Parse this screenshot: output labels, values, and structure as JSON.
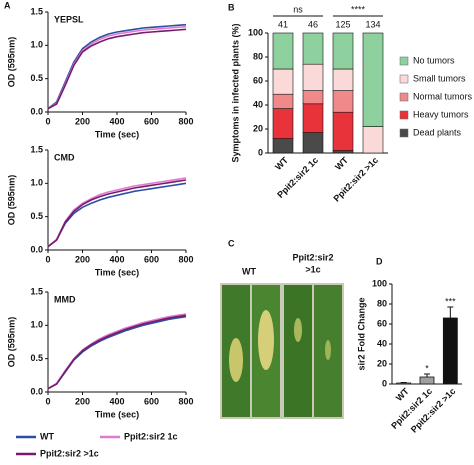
{
  "panels": [
    "A",
    "B",
    "C",
    "D"
  ],
  "chart_data": [
    {
      "type": "line",
      "title": "YEPSL",
      "xlabel": "Time (sec)",
      "ylabel": "OD (595nm)",
      "x": [
        0,
        50,
        100,
        150,
        200,
        250,
        300,
        350,
        400,
        450,
        500,
        550,
        600,
        650,
        700,
        750,
        800
      ],
      "xlim": [
        0,
        800
      ],
      "xticks": [
        0,
        200,
        400,
        600,
        800
      ],
      "ylim": [
        0,
        1.5
      ],
      "yticks": [
        {
          "value": 0,
          "label": "0.0"
        },
        0.5,
        {
          "value": 1,
          "label": "1.0"
        },
        1.5
      ],
      "series": [
        {
          "name": "WT",
          "color": "#2b4fa3",
          "values": [
            0.05,
            0.15,
            0.45,
            0.75,
            0.95,
            1.05,
            1.12,
            1.17,
            1.2,
            1.22,
            1.24,
            1.26,
            1.27,
            1.28,
            1.29,
            1.3,
            1.31
          ]
        },
        {
          "name": "Ppit2:sir2 1c",
          "color": "#e07ad0",
          "values": [
            0.05,
            0.13,
            0.42,
            0.72,
            0.92,
            1.02,
            1.09,
            1.14,
            1.17,
            1.19,
            1.21,
            1.23,
            1.24,
            1.25,
            1.26,
            1.27,
            1.28
          ]
        },
        {
          "name": "Ppit2:sir2 >1c",
          "color": "#7a1a6e",
          "values": [
            0.05,
            0.12,
            0.4,
            0.7,
            0.9,
            0.99,
            1.05,
            1.1,
            1.13,
            1.15,
            1.17,
            1.19,
            1.2,
            1.21,
            1.22,
            1.23,
            1.24
          ]
        }
      ]
    },
    {
      "type": "line",
      "title": "CMD",
      "xlabel": "Time (sec)",
      "ylabel": "OD (595nm)",
      "x": [
        0,
        50,
        100,
        150,
        200,
        250,
        300,
        350,
        400,
        450,
        500,
        550,
        600,
        650,
        700,
        750,
        800
      ],
      "xlim": [
        0,
        800
      ],
      "xticks": [
        0,
        200,
        400,
        600,
        800
      ],
      "ylim": [
        0,
        1.5
      ],
      "yticks": [
        {
          "value": 0,
          "label": "0.0"
        },
        0.5,
        {
          "value": 1,
          "label": "1.0"
        },
        1.5
      ],
      "series": [
        {
          "name": "WT",
          "color": "#2b4fa3",
          "values": [
            0.05,
            0.15,
            0.4,
            0.55,
            0.64,
            0.7,
            0.75,
            0.79,
            0.82,
            0.85,
            0.88,
            0.9,
            0.92,
            0.94,
            0.96,
            0.98,
            1.0
          ]
        },
        {
          "name": "Ppit2:sir2 1c",
          "color": "#e07ad0",
          "values": [
            0.05,
            0.16,
            0.43,
            0.6,
            0.7,
            0.77,
            0.83,
            0.87,
            0.9,
            0.93,
            0.96,
            0.98,
            1.0,
            1.02,
            1.04,
            1.06,
            1.08
          ]
        },
        {
          "name": "Ppit2:sir2 >1c",
          "color": "#7a1a6e",
          "values": [
            0.05,
            0.15,
            0.42,
            0.58,
            0.68,
            0.75,
            0.8,
            0.84,
            0.87,
            0.9,
            0.93,
            0.95,
            0.97,
            0.99,
            1.01,
            1.03,
            1.05
          ]
        }
      ]
    },
    {
      "type": "line",
      "title": "MMD",
      "xlabel": "Time (sec)",
      "ylabel": "OD (595nm)",
      "x": [
        0,
        50,
        100,
        150,
        200,
        250,
        300,
        350,
        400,
        450,
        500,
        550,
        600,
        650,
        700,
        750,
        800
      ],
      "xlim": [
        0,
        800
      ],
      "xticks": [
        0,
        200,
        400,
        600,
        800
      ],
      "ylim": [
        0,
        1.5
      ],
      "yticks": [
        {
          "value": 0,
          "label": "0.0"
        },
        0.5,
        {
          "value": 1,
          "label": "1.0"
        },
        1.5
      ],
      "series": [
        {
          "name": "WT",
          "color": "#2b4fa3",
          "values": [
            0.05,
            0.12,
            0.3,
            0.48,
            0.6,
            0.69,
            0.76,
            0.82,
            0.87,
            0.92,
            0.96,
            1.0,
            1.03,
            1.06,
            1.09,
            1.11,
            1.13
          ]
        },
        {
          "name": "Ppit2:sir2 1c",
          "color": "#e07ad0",
          "values": [
            0.05,
            0.13,
            0.32,
            0.5,
            0.63,
            0.72,
            0.8,
            0.86,
            0.91,
            0.96,
            1.0,
            1.04,
            1.07,
            1.1,
            1.13,
            1.15,
            1.17
          ]
        },
        {
          "name": "Ppit2:sir2 >1c",
          "color": "#7a1a6e",
          "values": [
            0.05,
            0.12,
            0.31,
            0.49,
            0.62,
            0.71,
            0.78,
            0.84,
            0.89,
            0.94,
            0.98,
            1.02,
            1.05,
            1.08,
            1.11,
            1.13,
            1.15
          ]
        }
      ]
    },
    {
      "type": "stacked_bar",
      "ylabel": "Symptoms in infected plants (%)",
      "categories": [
        "WT",
        "Ppit2:sir2 1c",
        "WT",
        "Ppit2:sir2 >1c"
      ],
      "n_labels": [
        41,
        46,
        125,
        134
      ],
      "significance": [
        "ns",
        "****"
      ],
      "ylim": [
        0,
        100
      ],
      "yticks": [
        0,
        20,
        40,
        60,
        80,
        100
      ],
      "legend": "right",
      "series": [
        {
          "name": "Dead plants",
          "color": "#4a4a4a",
          "values": [
            12,
            17,
            2,
            0
          ]
        },
        {
          "name": "Heavy tumors",
          "color": "#e8333a",
          "values": [
            25,
            24,
            32,
            0
          ]
        },
        {
          "name": "Normal tumors",
          "color": "#f08a8a",
          "values": [
            12,
            11,
            18,
            0
          ]
        },
        {
          "name": "Small tumors",
          "color": "#fbd9d9",
          "values": [
            21,
            22,
            18,
            22
          ]
        },
        {
          "name": "No tumors",
          "color": "#8fd19e",
          "values": [
            30,
            26,
            30,
            78
          ]
        }
      ]
    },
    {
      "type": "bar",
      "ylabel": "sir2 Fold Change",
      "categories": [
        "WT",
        "Ppit2:sir2 1c",
        "Ppit2:sir2 >1c"
      ],
      "values": [
        1,
        7,
        66
      ],
      "errors": [
        0.5,
        3,
        11
      ],
      "colors": [
        "#ffffff",
        "#a0a0a0",
        "#111111"
      ],
      "annotations": [
        null,
        "*",
        "***"
      ],
      "ylim": [
        0,
        100
      ],
      "yticks": [
        0,
        20,
        40,
        60,
        80,
        100
      ]
    }
  ],
  "photo_panel": {
    "labels": [
      "WT",
      "Ppit2:sir2",
      ">1c"
    ]
  }
}
